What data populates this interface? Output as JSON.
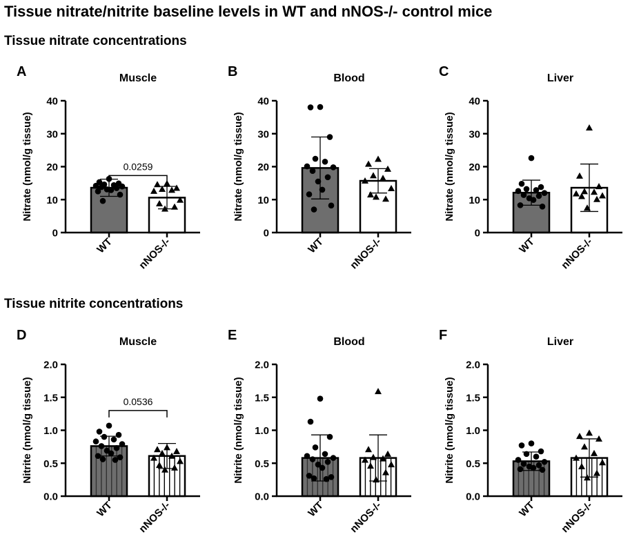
{
  "figure_title": "Tissue nitrate/nitrite baseline levels in WT and nNOS-/- control mice",
  "sections": {
    "nitrate": "Tissue nitrate concentrations",
    "nitrite": "Tissue nitrite concentrations"
  },
  "colors": {
    "wt_bar": "#6e6e6e",
    "knockout_bar": "#ffffff",
    "stroke": "#000000"
  },
  "chart_data": [
    {
      "panel": "A",
      "type": "bar",
      "title": "Muscle",
      "analyte": "nitrate",
      "ylabel": "Nitrate (nmol/g tissue)",
      "ylim": [
        0,
        40
      ],
      "yticks": [
        "0",
        "10",
        "20",
        "30",
        "40"
      ],
      "categories": [
        "WT",
        "nNOS-/-"
      ],
      "marker_shapes": [
        "circle",
        "triangle"
      ],
      "series": [
        {
          "name": "WT",
          "mean": 13.6,
          "sd": 2.6,
          "points": [
            16.3,
            15.3,
            14.9,
            14.6,
            14.4,
            14.2,
            14.0,
            13.8,
            13.5,
            13.1,
            12.9,
            12.5,
            11.5,
            9.6
          ]
        },
        {
          "name": "nNOS-/-",
          "mean": 10.6,
          "sd": 3.4,
          "points": [
            14.9,
            14.6,
            13.5,
            13.2,
            12.9,
            12.6,
            9.9,
            8.8,
            7.8,
            7.2
          ]
        }
      ],
      "annotation": {
        "label": "0.0259",
        "bracket_y": 17.3
      }
    },
    {
      "panel": "B",
      "type": "bar",
      "title": "Blood",
      "analyte": "nitrate",
      "ylabel": "Nitrate (nmol/g tissue)",
      "ylim": [
        0,
        40
      ],
      "yticks": [
        "0",
        "10",
        "20",
        "30",
        "40"
      ],
      "categories": [
        "WT",
        "nNOS-/-"
      ],
      "marker_shapes": [
        "circle",
        "triangle"
      ],
      "series": [
        {
          "name": "WT",
          "mean": 19.6,
          "sd": 9.4,
          "points": [
            38.1,
            38.0,
            29.0,
            22.4,
            21.5,
            20.1,
            19.8,
            18.7,
            16.8,
            15.5,
            13.0,
            11.6,
            8.2,
            7.0
          ]
        },
        {
          "name": "nNOS-/-",
          "mean": 15.7,
          "sd": 3.7,
          "points": [
            22.3,
            20.8,
            19.3,
            17.3,
            16.5,
            15.7,
            13.4,
            11.5,
            10.2,
            10.8
          ]
        }
      ]
    },
    {
      "panel": "C",
      "type": "bar",
      "title": "Liver",
      "analyte": "nitrate",
      "ylabel": "Nitrate (nmol/g tissue)",
      "ylim": [
        0,
        40
      ],
      "yticks": [
        "0",
        "10",
        "20",
        "30",
        "40"
      ],
      "categories": [
        "WT",
        "nNOS-/-"
      ],
      "marker_shapes": [
        "circle",
        "triangle"
      ],
      "series": [
        {
          "name": "WT",
          "mean": 12.1,
          "sd": 3.8,
          "points": [
            22.6,
            14.8,
            13.8,
            13.2,
            12.9,
            12.6,
            12.0,
            11.4,
            11.1,
            10.4,
            9.9,
            8.3,
            7.9
          ]
        },
        {
          "name": "nNOS-/-",
          "mean": 13.6,
          "sd": 7.2,
          "points": [
            31.8,
            17.2,
            14.0,
            12.5,
            12.3,
            11.8,
            11.2,
            11.0,
            10.1,
            7.5
          ]
        }
      ]
    },
    {
      "panel": "D",
      "type": "bar",
      "title": "Muscle",
      "analyte": "nitrite",
      "ylabel": "Nitrite (nmol/g tissue)",
      "ylim": [
        0,
        2
      ],
      "yticks": [
        "0.0",
        "0.5",
        "1.0",
        "1.5",
        "2.0"
      ],
      "categories": [
        "WT",
        "nNOS-/-"
      ],
      "marker_shapes": [
        "circle",
        "triangle"
      ],
      "series": [
        {
          "name": "WT",
          "mean": 0.76,
          "sd": 0.15,
          "points": [
            1.07,
            0.98,
            0.93,
            0.9,
            0.86,
            0.83,
            0.79,
            0.76,
            0.73,
            0.69,
            0.65,
            0.61,
            0.59,
            0.56,
            0.55
          ]
        },
        {
          "name": "nNOS-/-",
          "mean": 0.61,
          "sd": 0.19,
          "points": [
            0.74,
            0.71,
            0.68,
            0.65,
            0.61,
            0.58,
            0.53,
            0.47,
            0.43,
            0.4
          ]
        }
      ],
      "annotation": {
        "label": "0.0536",
        "bracket_y": 1.3
      }
    },
    {
      "panel": "E",
      "type": "bar",
      "title": "Blood",
      "analyte": "nitrite",
      "ylabel": "Nitrite (nmol/g tissue)",
      "ylim": [
        0,
        2
      ],
      "yticks": [
        "0.0",
        "0.5",
        "1.0",
        "1.5",
        "2.0"
      ],
      "categories": [
        "WT",
        "nNOS-/-"
      ],
      "marker_shapes": [
        "circle",
        "triangle"
      ],
      "series": [
        {
          "name": "WT",
          "mean": 0.58,
          "sd": 0.35,
          "points": [
            1.48,
            1.13,
            0.9,
            0.74,
            0.64,
            0.61,
            0.58,
            0.56,
            0.52,
            0.48,
            0.43,
            0.31,
            0.29,
            0.27,
            0.26
          ]
        },
        {
          "name": "nNOS-/-",
          "mean": 0.58,
          "sd": 0.35,
          "points": [
            1.59,
            0.71,
            0.64,
            0.59,
            0.57,
            0.55,
            0.48,
            0.46,
            0.36,
            0.25
          ]
        }
      ]
    },
    {
      "panel": "F",
      "type": "bar",
      "title": "Liver",
      "analyte": "nitrite",
      "ylabel": "Nitrite (nmol/g tissue)",
      "ylim": [
        0,
        2
      ],
      "yticks": [
        "0.0",
        "0.5",
        "1.0",
        "1.5",
        "2.0"
      ],
      "categories": [
        "WT",
        "nNOS-/-"
      ],
      "marker_shapes": [
        "circle",
        "triangle"
      ],
      "series": [
        {
          "name": "WT",
          "mean": 0.53,
          "sd": 0.14,
          "points": [
            0.8,
            0.77,
            0.68,
            0.64,
            0.6,
            0.55,
            0.52,
            0.49,
            0.47,
            0.45,
            0.43,
            0.41,
            0.4
          ]
        },
        {
          "name": "nNOS-/-",
          "mean": 0.58,
          "sd": 0.29,
          "points": [
            0.96,
            0.91,
            0.87,
            0.75,
            0.65,
            0.58,
            0.51,
            0.45,
            0.35,
            0.28
          ]
        }
      ]
    }
  ]
}
